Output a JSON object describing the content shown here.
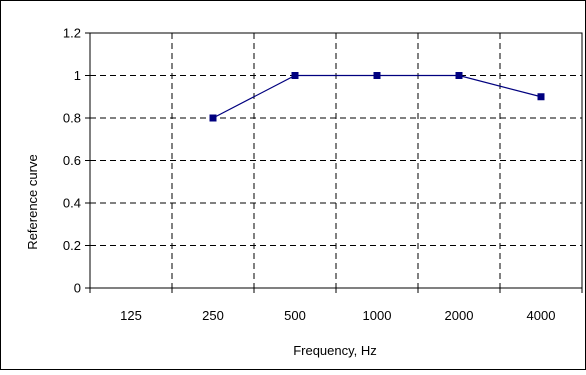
{
  "chart_data": {
    "type": "line",
    "title": "",
    "xlabel": "Frequency, Hz",
    "ylabel": "Reference curve",
    "categories": [
      "125",
      "250",
      "500",
      "1000",
      "2000",
      "4000"
    ],
    "series": [
      {
        "values": [
          null,
          0.8,
          1.0,
          1.0,
          1.0,
          0.9
        ]
      }
    ],
    "ylim": [
      0,
      1.2
    ],
    "yticks": [
      "0",
      "0.2",
      "0.4",
      "0.6",
      "0.8",
      "1",
      "1.2"
    ],
    "grid": true,
    "legend": "none",
    "colors": {
      "line": "#00007f",
      "marker": "#00007f",
      "grid": "#000000",
      "frame": "#000000"
    }
  }
}
